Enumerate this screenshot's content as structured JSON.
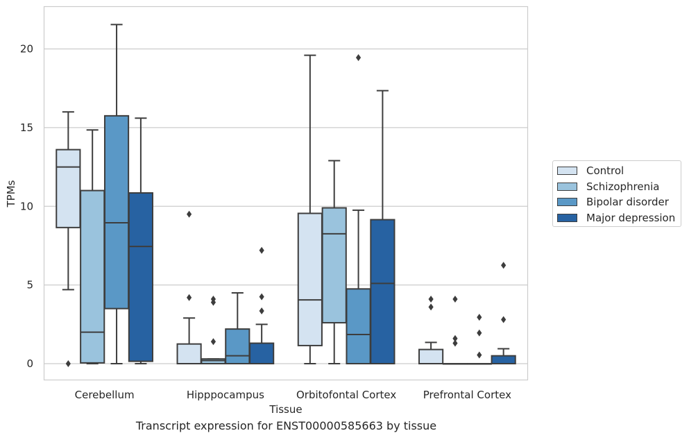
{
  "chart_data": {
    "type": "box",
    "caption": "Transcript expression for ENST00000585663 by tissue",
    "xlabel": "Tissue",
    "ylabel": "TPMs",
    "ylim": [
      -1.05,
      22.6
    ],
    "yticks": [
      0,
      5,
      10,
      15,
      20
    ],
    "grid": "horizontal",
    "legend_position": "right",
    "categories": [
      "Cerebellum",
      "Hipppocampus",
      "Orbitofontal Cortex",
      "Prefrontal Cortex"
    ],
    "series": [
      {
        "name": "Control",
        "color": "#d4e3f1",
        "boxes": [
          {
            "whisker_low": 4.7,
            "q1": 8.65,
            "median": 12.5,
            "q3": 13.6,
            "whisker_high": 16.0,
            "outliers": [
              0.0
            ]
          },
          {
            "whisker_low": 0.0,
            "q1": 0.0,
            "median": 0.0,
            "q3": 1.25,
            "whisker_high": 2.9,
            "outliers": [
              9.5,
              4.2
            ]
          },
          {
            "whisker_low": 0.0,
            "q1": 1.15,
            "median": 4.05,
            "q3": 9.55,
            "whisker_high": 19.6,
            "outliers": []
          },
          {
            "whisker_low": 0.0,
            "q1": 0.0,
            "median": 0.0,
            "q3": 0.9,
            "whisker_high": 1.35,
            "outliers": [
              4.1,
              3.6
            ]
          }
        ]
      },
      {
        "name": "Schizophrenia",
        "color": "#9ac3dd",
        "boxes": [
          {
            "whisker_low": 0.0,
            "q1": 0.05,
            "median": 2.0,
            "q3": 11.0,
            "whisker_high": 14.85,
            "outliers": []
          },
          {
            "whisker_low": 0.0,
            "q1": 0.0,
            "median": 0.2,
            "q3": 0.3,
            "whisker_high": 0.3,
            "outliers": [
              4.1,
              3.9,
              1.4
            ]
          },
          {
            "whisker_low": 0.0,
            "q1": 2.6,
            "median": 8.25,
            "q3": 9.9,
            "whisker_high": 12.9,
            "outliers": []
          },
          {
            "whisker_low": 0.0,
            "q1": 0.0,
            "median": 0.0,
            "q3": 0.0,
            "whisker_high": 0.0,
            "outliers": [
              4.1,
              1.6,
              1.3
            ]
          }
        ]
      },
      {
        "name": "Bipolar disorder",
        "color": "#5a98c6",
        "boxes": [
          {
            "whisker_low": 0.0,
            "q1": 3.5,
            "median": 8.95,
            "q3": 15.75,
            "whisker_high": 21.55,
            "outliers": []
          },
          {
            "whisker_low": 0.0,
            "q1": 0.0,
            "median": 0.5,
            "q3": 2.2,
            "whisker_high": 4.5,
            "outliers": []
          },
          {
            "whisker_low": 0.0,
            "q1": 0.0,
            "median": 1.85,
            "q3": 4.75,
            "whisker_high": 9.75,
            "outliers": [
              19.45
            ]
          },
          {
            "whisker_low": 0.0,
            "q1": 0.0,
            "median": 0.0,
            "q3": 0.0,
            "whisker_high": 0.0,
            "outliers": [
              2.95,
              1.95,
              0.55
            ]
          }
        ]
      },
      {
        "name": "Major depression",
        "color": "#2762a2",
        "boxes": [
          {
            "whisker_low": 0.0,
            "q1": 0.15,
            "median": 7.45,
            "q3": 10.85,
            "whisker_high": 15.6,
            "outliers": []
          },
          {
            "whisker_low": 0.0,
            "q1": 0.0,
            "median": 0.0,
            "q3": 1.3,
            "whisker_high": 2.5,
            "outliers": [
              7.2,
              4.25,
              3.35
            ]
          },
          {
            "whisker_low": 0.0,
            "q1": 0.0,
            "median": 5.1,
            "q3": 9.15,
            "whisker_high": 17.35,
            "outliers": []
          },
          {
            "whisker_low": 0.0,
            "q1": 0.0,
            "median": 0.0,
            "q3": 0.5,
            "whisker_high": 0.95,
            "outliers": [
              6.25,
              2.8
            ]
          }
        ]
      }
    ]
  }
}
